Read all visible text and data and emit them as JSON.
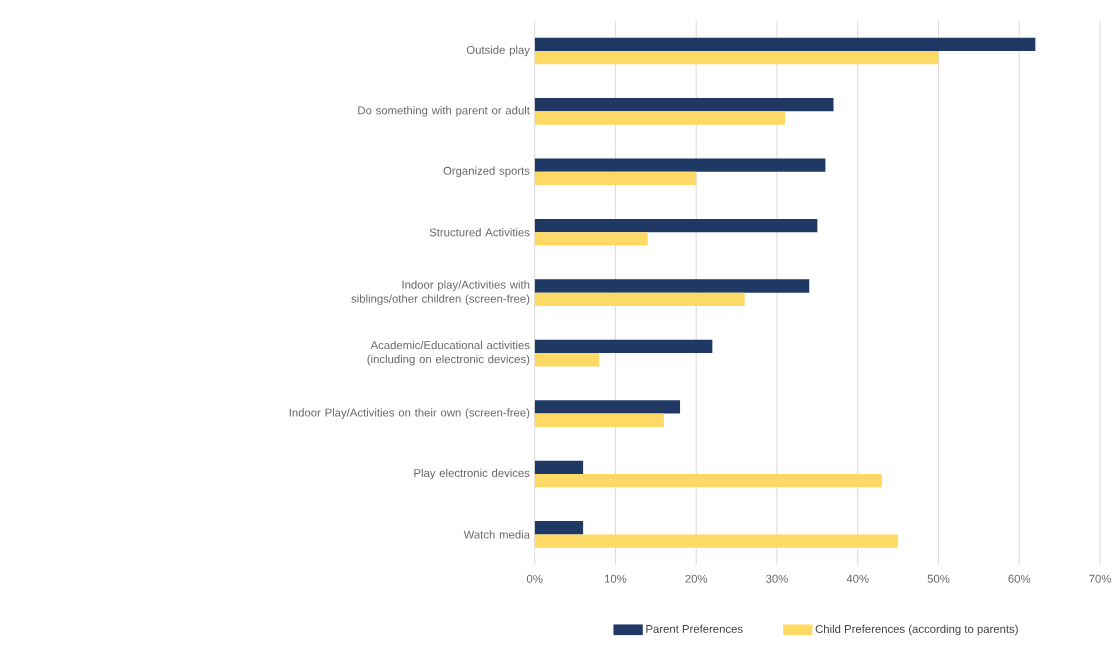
{
  "chart_data": {
    "type": "bar",
    "orientation": "horizontal",
    "categories": [
      "Outside play",
      "Do something with parent or adult",
      "Organized sports",
      "Structured Activities",
      "Indoor play/Activities with siblings/other children (screen-free)",
      "Academic/Educational activities (including on electronic devices)",
      "Indoor Play/Activities on their own (screen-free)",
      "Play electronic devices",
      "Watch media"
    ],
    "series": [
      {
        "name": "Parent Preferences",
        "color": "#1f3864",
        "values": [
          62,
          37,
          36,
          35,
          34,
          22,
          18,
          6,
          6
        ]
      },
      {
        "name": "Child Preferences (according to parents)",
        "color": "#ffd966",
        "values": [
          50,
          31,
          20,
          14,
          26,
          8,
          16,
          43,
          45
        ]
      }
    ],
    "xlim": [
      0,
      70
    ],
    "xticks": [
      {
        "value": 0,
        "label": "0%"
      },
      {
        "value": 10,
        "label": "10%"
      },
      {
        "value": 20,
        "label": "20%"
      },
      {
        "value": 30,
        "label": "30%"
      },
      {
        "value": 40,
        "label": "40%"
      },
      {
        "value": 50,
        "label": "50%"
      },
      {
        "value": 60,
        "label": "60%"
      },
      {
        "value": 70,
        "label": "70%"
      }
    ],
    "grid": "x",
    "legend": "bottom"
  }
}
